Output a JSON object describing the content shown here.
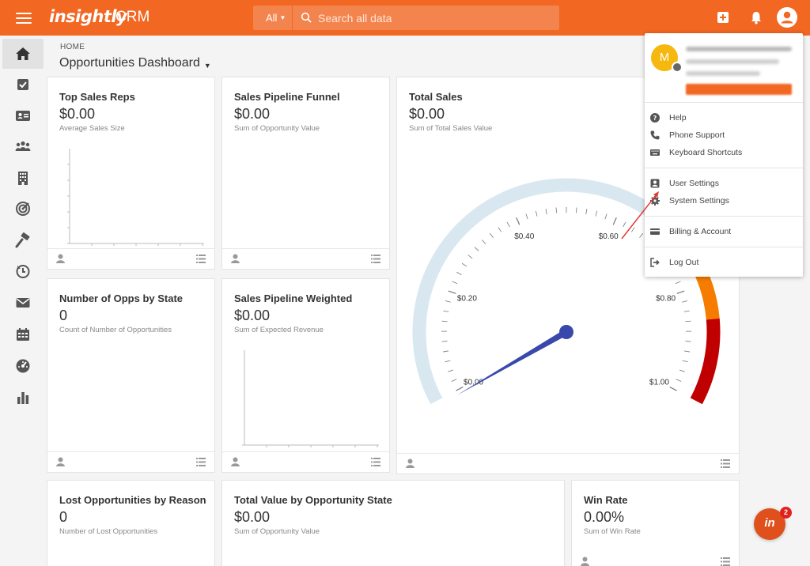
{
  "app": {
    "logo": "insightly",
    "product": "CRM",
    "search": {
      "scope": "All",
      "placeholder": "Search all data"
    }
  },
  "breadcrumb": "HOME",
  "page_title": "Opportunities Dashboard",
  "sidebar": {
    "items": [
      {
        "icon": "home-icon",
        "active": true
      },
      {
        "icon": "tasks-icon"
      },
      {
        "icon": "contacts-icon"
      },
      {
        "icon": "leads-icon"
      },
      {
        "icon": "organizations-icon"
      },
      {
        "icon": "opportunities-icon"
      },
      {
        "icon": "projects-icon"
      },
      {
        "icon": "reports-history-icon"
      },
      {
        "icon": "email-icon"
      },
      {
        "icon": "calendar-icon"
      },
      {
        "icon": "dashboard-icon"
      },
      {
        "icon": "reports-icon"
      }
    ]
  },
  "cards": {
    "top_sales_reps": {
      "title": "Top Sales Reps",
      "value": "$0.00",
      "subtitle": "Average Sales Size"
    },
    "sales_pipeline_funnel": {
      "title": "Sales Pipeline Funnel",
      "value": "$0.00",
      "subtitle": "Sum of Opportunity Value"
    },
    "total_sales": {
      "title": "Total Sales",
      "value": "$0.00",
      "subtitle": "Sum of Total Sales Value"
    },
    "opps_by_state": {
      "title": "Number of Opps by State",
      "value": "0",
      "subtitle": "Count of Number of Opportunities"
    },
    "pipeline_weighted": {
      "title": "Sales Pipeline Weighted",
      "value": "$0.00",
      "subtitle": "Sum of Expected Revenue"
    },
    "lost_by_reason": {
      "title": "Lost Opportunities by Reason",
      "value": "0",
      "subtitle": "Number of Lost Opportunities"
    },
    "value_by_state": {
      "title": "Total Value by Opportunity State",
      "value": "$0.00",
      "subtitle": "Sum of Opportunity Value"
    },
    "win_rate": {
      "title": "Win Rate",
      "value": "0.00%",
      "subtitle": "Sum of Win Rate"
    }
  },
  "gauge": {
    "labels": [
      "$0.00",
      "$0.20",
      "$0.40",
      "$0.60",
      "$0.80",
      "$1.00"
    ],
    "min": 0,
    "max": 1,
    "needle_value": 0,
    "colors": {
      "track": "#d9e8f0",
      "warning": "#f57c00",
      "danger": "#c00000",
      "needle": "#3949ab"
    }
  },
  "user_menu": {
    "avatar_letter": "M",
    "items": {
      "help": "Help",
      "phone_support": "Phone Support",
      "keyboard_shortcuts": "Keyboard Shortcuts",
      "user_settings": "User Settings",
      "system_settings": "System Settings",
      "billing": "Billing & Account",
      "logout": "Log Out"
    }
  },
  "chat": {
    "label": "in",
    "badge": "2"
  },
  "colors": {
    "brand": "#f26722",
    "accent_red": "#e2211c"
  }
}
